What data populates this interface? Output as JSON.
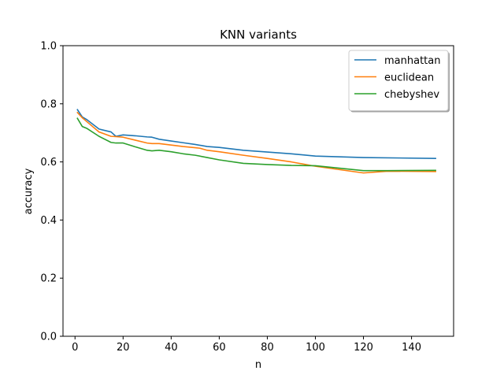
{
  "chart_data": {
    "type": "line",
    "title": "KNN variants",
    "xlabel": "n",
    "ylabel": "accuracy",
    "xlim": [
      -5,
      157.5
    ],
    "ylim": [
      0.0,
      1.0
    ],
    "xticks": [
      "0",
      "20",
      "40",
      "60",
      "80",
      "100",
      "120",
      "140"
    ],
    "yticks": [
      "0.0",
      "0.2",
      "0.4",
      "0.6",
      "0.8",
      "1.0"
    ],
    "grid": false,
    "legend_position": "top-right",
    "series": [
      {
        "name": "manhattan",
        "color": "#1f77b4",
        "x": [
          1,
          3,
          5,
          10,
          15,
          17,
          20,
          25,
          30,
          32,
          35,
          40,
          45,
          50,
          55,
          60,
          70,
          80,
          90,
          100,
          120,
          150
        ],
        "y": [
          0.78,
          0.755,
          0.745,
          0.713,
          0.703,
          0.688,
          0.693,
          0.69,
          0.686,
          0.685,
          0.678,
          0.672,
          0.666,
          0.66,
          0.653,
          0.65,
          0.64,
          0.634,
          0.628,
          0.62,
          0.615,
          0.612
        ]
      },
      {
        "name": "euclidean",
        "color": "#ff7f0e",
        "x": [
          1,
          3,
          5,
          10,
          15,
          17,
          20,
          25,
          30,
          32,
          35,
          40,
          45,
          50,
          52,
          55,
          60,
          70,
          80,
          90,
          100,
          120,
          130,
          150
        ],
        "y": [
          0.77,
          0.752,
          0.738,
          0.703,
          0.688,
          0.687,
          0.685,
          0.675,
          0.665,
          0.663,
          0.663,
          0.658,
          0.653,
          0.649,
          0.647,
          0.64,
          0.635,
          0.623,
          0.612,
          0.6,
          0.585,
          0.562,
          0.568,
          0.567
        ]
      },
      {
        "name": "chebyshev",
        "color": "#2ca02c",
        "x": [
          1,
          3,
          5,
          10,
          15,
          17,
          20,
          25,
          30,
          32,
          35,
          40,
          45,
          50,
          55,
          60,
          70,
          80,
          90,
          100,
          120,
          130,
          150
        ],
        "y": [
          0.75,
          0.722,
          0.715,
          0.688,
          0.667,
          0.665,
          0.665,
          0.652,
          0.64,
          0.638,
          0.64,
          0.635,
          0.628,
          0.623,
          0.615,
          0.607,
          0.595,
          0.591,
          0.588,
          0.587,
          0.57,
          0.57,
          0.571
        ]
      }
    ]
  }
}
